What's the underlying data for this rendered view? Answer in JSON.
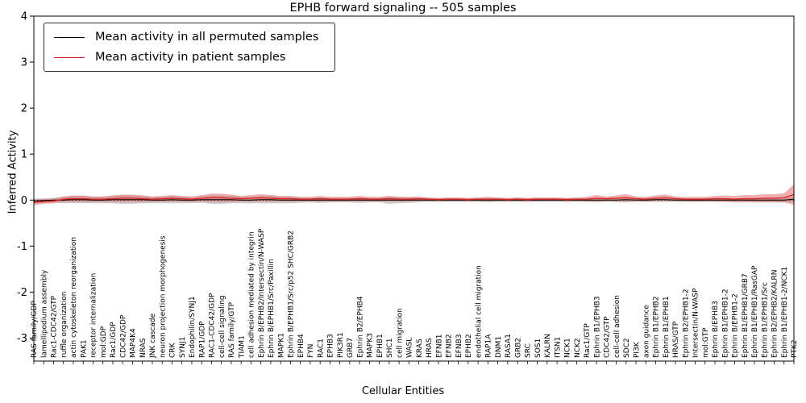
{
  "window": {
    "title": "EPHB forward signaling -- 505 samples"
  },
  "chart_data": {
    "type": "line",
    "title": "EPHB forward signaling -- 505 samples",
    "xlabel": "Cellular Entities",
    "ylabel": "Inferred Activity",
    "ylim": [
      -3.5,
      4
    ],
    "yticks": [
      4,
      3,
      2,
      1,
      0,
      -1,
      -2,
      -3
    ],
    "grid": false,
    "legend_position": "upper left",
    "zero_line": "dotted",
    "sample_count": 505,
    "categories": [
      "RAS family/GDP",
      "lamellipodium assembly",
      "Rac1-CDC42/GTP",
      "ruffle organization",
      "actin cytoskeleton reorganization",
      "PAK1",
      "receptor internalization",
      "mol:GDP",
      "Rac1/GDP",
      "CDC42/GDP",
      "MAP4K4",
      "NRAS",
      "JNK cascade",
      "neuron projection morphogenesis",
      "CRK",
      "SYNJ1",
      "Endophilin/SYNJ1",
      "RAP1/GDP",
      "RAC1-CDC42/GDP",
      "cell-cell signaling",
      "RAS family/GTP",
      "TIAM1",
      "cell adhesion mediated by integrin",
      "Ephrin B/EPHB2/Intersectin/N-WASP",
      "Ephrin B/EPHB1/Src/Paxillin",
      "MAPK1",
      "Ephrin B/EPHB1/Src/p52 SHC/GRB2",
      "EPHB4",
      "FYN",
      "RAC1",
      "EPHB3",
      "PIK3R1",
      "GRB7",
      "Ephrin B2/EPHB4",
      "MAPK3",
      "EPHB1",
      "SHC1",
      "cell migration",
      "WASL",
      "KRAS",
      "HRAS",
      "EFNB1",
      "EFNB2",
      "EFNB3",
      "EPHB2",
      "endothelial cell migration",
      "RAP1A",
      "DNM1",
      "RASA1",
      "GRB2",
      "SRC",
      "SOS1",
      "KALRN",
      "ITSN1",
      "NCK1",
      "NCK2",
      "Rac1/GTP",
      "Ephrin B1/EPHB3",
      "CDC42/GTP",
      "cell-cell adhesion",
      "SDC2",
      "PI3K",
      "axon guidance",
      "Ephrin B1/EPHB2",
      "Ephrin B1/EPHB1",
      "HRAS/GTP",
      "Ephrin B2/EPHB1-2",
      "Intersectin/N-WASP",
      "mol:GTP",
      "Ephrin B/EPHB3",
      "Ephrin B1/EPHB1-2",
      "Ephrin B/EPHB1-2",
      "Ephrin B1/EPHB1/GRB7",
      "Ephrin B1/EPHB1/RasGAP",
      "Ephrin B1/EPHB1/Src",
      "Ephrin B2/EPHB2/KALRN",
      "Ephrin B1/EPHB1-2/NCK1",
      "PTK2"
    ],
    "series": [
      {
        "name": "Mean activity in all permuted samples",
        "color": "#000000",
        "band_color": "#9e9e9e",
        "band_opacity": 0.55,
        "values": [
          -0.02,
          -0.01,
          0,
          0,
          0.01,
          0.01,
          0,
          0,
          0.01,
          0.01,
          0.01,
          0.01,
          0,
          0,
          0.01,
          0,
          0,
          0.01,
          0.01,
          0.01,
          0.01,
          0,
          0,
          0.01,
          0.01,
          0,
          0,
          0,
          0,
          0,
          0,
          0,
          0,
          0,
          0,
          0,
          0,
          0,
          0,
          0,
          0,
          0,
          0,
          0,
          0,
          0,
          0,
          0,
          0,
          0,
          0,
          0,
          0,
          0,
          0,
          0,
          0,
          0,
          0,
          0,
          0.01,
          0,
          0,
          0.01,
          0.01,
          0,
          0,
          0,
          0,
          0,
          0,
          0,
          0,
          0,
          0,
          0,
          0,
          0.02
        ],
        "band_half_width": [
          0.05,
          0.05,
          0.05,
          0.07,
          0.08,
          0.08,
          0.07,
          0.07,
          0.08,
          0.09,
          0.09,
          0.08,
          0.07,
          0.07,
          0.08,
          0.07,
          0.06,
          0.07,
          0.09,
          0.09,
          0.08,
          0.07,
          0.07,
          0.08,
          0.08,
          0.07,
          0.07,
          0.06,
          0.05,
          0.06,
          0.05,
          0.05,
          0.05,
          0.06,
          0.05,
          0.05,
          0.08,
          0.07,
          0.06,
          0.05,
          0.04,
          0.04,
          0.04,
          0.04,
          0.04,
          0.04,
          0.05,
          0.04,
          0.04,
          0.04,
          0.04,
          0.04,
          0.04,
          0.04,
          0.04,
          0.04,
          0.04,
          0.05,
          0.04,
          0.05,
          0.06,
          0.04,
          0.04,
          0.05,
          0.05,
          0.04,
          0.04,
          0.04,
          0.04,
          0.04,
          0.04,
          0.04,
          0.04,
          0.04,
          0.05,
          0.05,
          0.05,
          0.06
        ]
      },
      {
        "name": "Mean activity in patient samples",
        "color": "#d62020",
        "band_color": "#e36d6d",
        "band_opacity": 0.55,
        "values": [
          -0.05,
          -0.03,
          -0.02,
          0.02,
          0.03,
          0.03,
          0.02,
          0.02,
          0.03,
          0.04,
          0.04,
          0.03,
          0.02,
          0.03,
          0.04,
          0.03,
          0.02,
          0.04,
          0.05,
          0.05,
          0.04,
          0.03,
          0.04,
          0.05,
          0.04,
          0.03,
          0.03,
          0.02,
          0.02,
          0.03,
          0.02,
          0.02,
          0.02,
          0.03,
          0.02,
          0.02,
          0.03,
          0.02,
          0.02,
          0.03,
          0.02,
          0.01,
          0.02,
          0.02,
          0.01,
          0.02,
          0.02,
          0.02,
          0.01,
          0.02,
          0.01,
          0.02,
          0.02,
          0.02,
          0.01,
          0.02,
          0.02,
          0.04,
          0.03,
          0.04,
          0.05,
          0.03,
          0.02,
          0.04,
          0.05,
          0.03,
          0.02,
          0.02,
          0.02,
          0.03,
          0.03,
          0.02,
          0.03,
          0.03,
          0.04,
          0.04,
          0.05,
          0.12
        ],
        "band_half_width": [
          0.06,
          0.05,
          0.05,
          0.06,
          0.07,
          0.07,
          0.06,
          0.06,
          0.07,
          0.08,
          0.08,
          0.07,
          0.06,
          0.06,
          0.07,
          0.06,
          0.06,
          0.07,
          0.09,
          0.09,
          0.08,
          0.06,
          0.07,
          0.08,
          0.07,
          0.06,
          0.06,
          0.05,
          0.05,
          0.06,
          0.05,
          0.05,
          0.05,
          0.06,
          0.05,
          0.05,
          0.06,
          0.05,
          0.05,
          0.05,
          0.04,
          0.04,
          0.04,
          0.04,
          0.04,
          0.04,
          0.05,
          0.04,
          0.04,
          0.04,
          0.04,
          0.04,
          0.04,
          0.04,
          0.04,
          0.04,
          0.05,
          0.07,
          0.05,
          0.06,
          0.08,
          0.05,
          0.05,
          0.06,
          0.07,
          0.05,
          0.05,
          0.05,
          0.05,
          0.06,
          0.07,
          0.07,
          0.08,
          0.08,
          0.09,
          0.09,
          0.1,
          0.22
        ]
      }
    ]
  }
}
